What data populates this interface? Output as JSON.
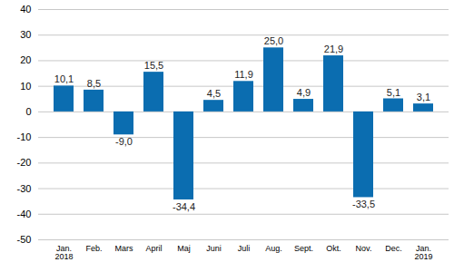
{
  "chart_data": {
    "type": "bar",
    "categories": [
      "Jan.\n2018",
      "Feb.",
      "Mars",
      "April",
      "Maj",
      "Juni",
      "Juli",
      "Aug.",
      "Sept.",
      "Okt.",
      "Nov.",
      "Dec.",
      "Jan.\n2019"
    ],
    "values": [
      10.1,
      8.5,
      -9.0,
      15.5,
      -34.4,
      4.5,
      11.9,
      25.0,
      4.9,
      21.9,
      -33.5,
      5.1,
      3.1
    ],
    "value_labels": [
      "10,1",
      "8,5",
      "-9,0",
      "15,5",
      "-34,4",
      "4,5",
      "11,9",
      "25,0",
      "4,9",
      "21,9",
      "-33,5",
      "5,1",
      "3,1"
    ],
    "color": "#0b6db0",
    "ylim": [
      -50,
      40
    ],
    "yticks": [
      -50,
      -40,
      -30,
      -20,
      -10,
      0,
      10,
      20,
      30,
      40
    ],
    "grid": true,
    "data_labels": true
  }
}
